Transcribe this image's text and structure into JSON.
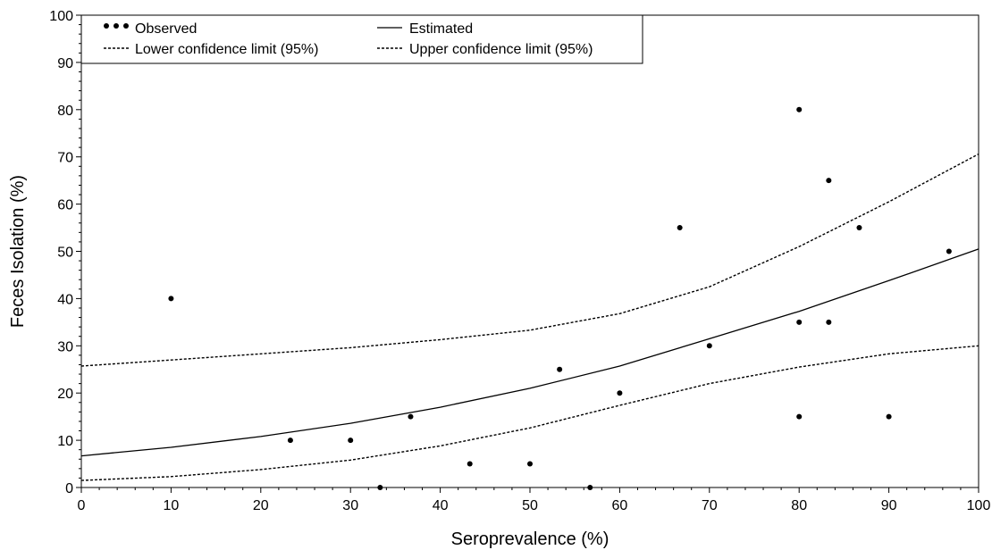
{
  "chart_data": {
    "type": "scatter",
    "xlabel": "Seroprevalence (%)",
    "ylabel": "Feces Isolation (%)",
    "xlim": [
      0,
      100
    ],
    "ylim": [
      0,
      100
    ],
    "xticks": [
      "0",
      "10",
      "20",
      "30",
      "40",
      "50",
      "60",
      "70",
      "80",
      "90",
      "100"
    ],
    "yticks": [
      "0",
      "10",
      "20",
      "30",
      "40",
      "50",
      "60",
      "70",
      "80",
      "90",
      "100"
    ],
    "grid": false,
    "legend": {
      "placement": "top-left",
      "entries": [
        {
          "label": "Observed",
          "style": "dots"
        },
        {
          "label": "Estimated",
          "style": "solid"
        },
        {
          "label": "Lower confidence limit (95%)",
          "style": "dotted"
        },
        {
          "label": "Upper confidence limit (95%)",
          "style": "dotted"
        }
      ]
    },
    "series": [
      {
        "name": "Observed",
        "kind": "points",
        "points": [
          [
            10,
            40
          ],
          [
            23.3,
            10
          ],
          [
            30,
            10
          ],
          [
            33.3,
            0
          ],
          [
            36.7,
            15
          ],
          [
            43.3,
            5
          ],
          [
            50,
            5
          ],
          [
            53.3,
            25
          ],
          [
            56.7,
            0
          ],
          [
            60,
            20
          ],
          [
            66.7,
            55
          ],
          [
            70,
            30
          ],
          [
            80,
            80
          ],
          [
            80,
            35
          ],
          [
            80,
            15
          ],
          [
            83.3,
            65
          ],
          [
            83.3,
            35
          ],
          [
            86.7,
            55
          ],
          [
            90,
            15
          ],
          [
            96.7,
            50
          ]
        ]
      },
      {
        "name": "Estimated",
        "kind": "line",
        "dash": "solid",
        "points": [
          [
            0,
            6.7
          ],
          [
            10,
            8.5
          ],
          [
            20,
            10.8
          ],
          [
            30,
            13.6
          ],
          [
            40,
            17.0
          ],
          [
            50,
            21.0
          ],
          [
            60,
            25.7
          ],
          [
            70,
            31.5
          ],
          [
            80,
            37.3
          ],
          [
            90,
            43.8
          ],
          [
            100,
            50.5
          ]
        ]
      },
      {
        "name": "Lower confidence limit (95%)",
        "kind": "line",
        "dash": "dotted",
        "points": [
          [
            0,
            1.5
          ],
          [
            10,
            2.3
          ],
          [
            20,
            3.8
          ],
          [
            30,
            5.8
          ],
          [
            40,
            8.8
          ],
          [
            50,
            12.6
          ],
          [
            60,
            17.4
          ],
          [
            70,
            22.0
          ],
          [
            80,
            25.5
          ],
          [
            90,
            28.3
          ],
          [
            100,
            30.0
          ]
        ]
      },
      {
        "name": "Upper confidence limit (95%)",
        "kind": "line",
        "dash": "dotted",
        "points": [
          [
            0,
            25.7
          ],
          [
            10,
            27.0
          ],
          [
            20,
            28.3
          ],
          [
            30,
            29.6
          ],
          [
            40,
            31.3
          ],
          [
            50,
            33.3
          ],
          [
            60,
            36.8
          ],
          [
            70,
            42.5
          ],
          [
            80,
            51.0
          ],
          [
            90,
            60.5
          ],
          [
            100,
            70.6
          ]
        ]
      }
    ]
  }
}
